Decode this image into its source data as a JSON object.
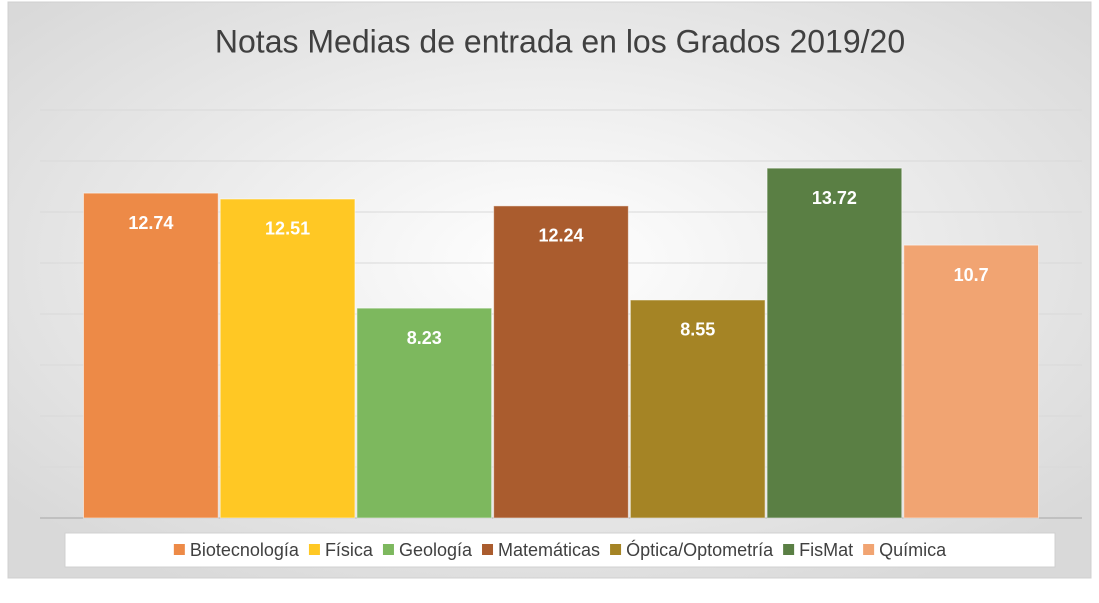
{
  "chart_data": {
    "type": "bar",
    "title": "Notas Medias de entrada en los Grados 2019/20",
    "categories": [
      null
    ],
    "series": [
      {
        "name": "Biotecnología",
        "color": "#ed8a47",
        "values": [
          12.74
        ]
      },
      {
        "name": "Física",
        "color": "#ffc824",
        "values": [
          12.51
        ]
      },
      {
        "name": "Geología",
        "color": "#7db85e",
        "values": [
          8.23
        ]
      },
      {
        "name": "Matemáticas",
        "color": "#aa5c2e",
        "values": [
          12.24
        ]
      },
      {
        "name": "Óptica/Optometría",
        "color": "#a58425",
        "values": [
          8.55
        ]
      },
      {
        "name": "FisMat",
        "color": "#5a7f44",
        "values": [
          13.72
        ]
      },
      {
        "name": "Química",
        "color": "#f1a472",
        "values": [
          10.7
        ]
      }
    ],
    "ylim": [
      0,
      16
    ],
    "yticks": [
      0,
      2,
      4,
      6,
      8,
      10,
      12,
      14,
      16
    ],
    "grid": true,
    "legend": "bottom"
  }
}
